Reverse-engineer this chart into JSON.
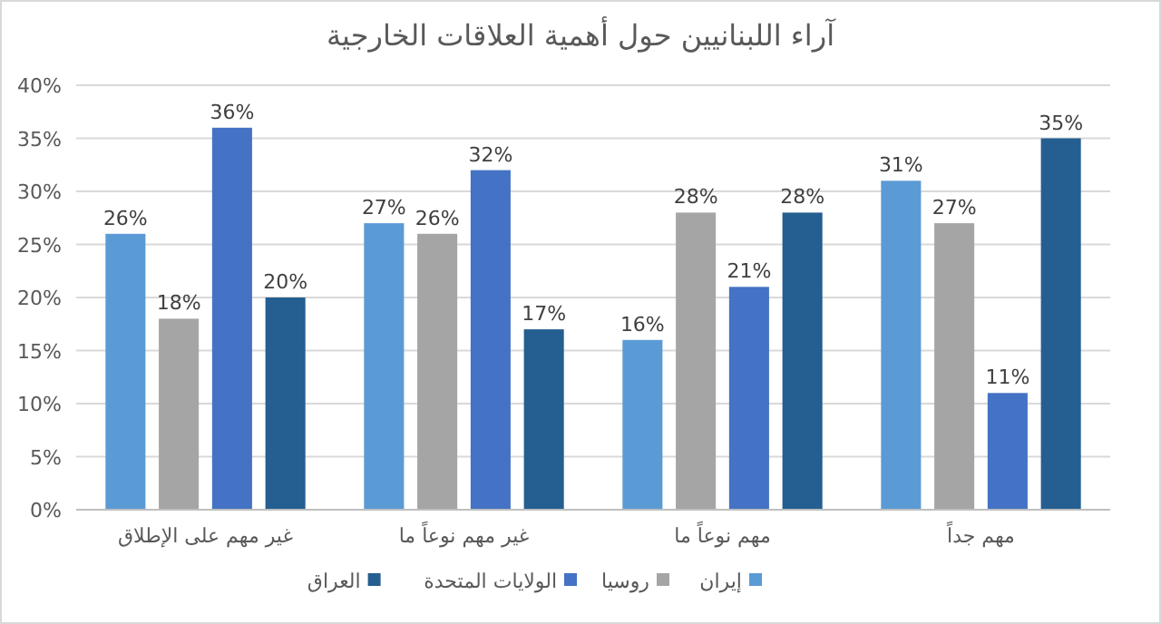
{
  "chart_data": {
    "type": "bar",
    "title": "آراء اللبنانيين حول أهمية العلاقات الخارجية",
    "categories": [
      "غير مهم على الإطلاق",
      "غير مهم نوعاً ما",
      "مهم نوعاً ما",
      "مهم جداً"
    ],
    "series": [
      {
        "name": "إيران",
        "color": "#5b9bd5",
        "values": [
          26,
          27,
          16,
          31
        ],
        "value_labels": [
          "26%",
          "27%",
          "16%",
          "31%"
        ]
      },
      {
        "name": "روسيا",
        "color": "#a5a5a5",
        "values": [
          18,
          26,
          28,
          27
        ],
        "value_labels": [
          "18%",
          "26%",
          "28%",
          "27%"
        ]
      },
      {
        "name": "الولايات المتحدة",
        "color": "#4472c4",
        "values": [
          36,
          32,
          21,
          11
        ],
        "value_labels": [
          "36%",
          "32%",
          "21%",
          "11%"
        ]
      },
      {
        "name": "العراق",
        "color": "#255e91",
        "values": [
          20,
          17,
          28,
          35
        ],
        "value_labels": [
          "20%",
          "17%",
          "28%",
          "35%"
        ]
      }
    ],
    "ylim": [
      0,
      40
    ],
    "yticks": [
      {
        "value": 0,
        "label": "0%"
      },
      {
        "value": 5,
        "label": "5%"
      },
      {
        "value": 10,
        "label": "10%"
      },
      {
        "value": 15,
        "label": "15%"
      },
      {
        "value": 20,
        "label": "20%"
      },
      {
        "value": 25,
        "label": "25%"
      },
      {
        "value": 30,
        "label": "30%"
      },
      {
        "value": 35,
        "label": "35%"
      },
      {
        "value": 40,
        "label": "40%"
      }
    ],
    "grid": "y",
    "legend": "bottom"
  }
}
